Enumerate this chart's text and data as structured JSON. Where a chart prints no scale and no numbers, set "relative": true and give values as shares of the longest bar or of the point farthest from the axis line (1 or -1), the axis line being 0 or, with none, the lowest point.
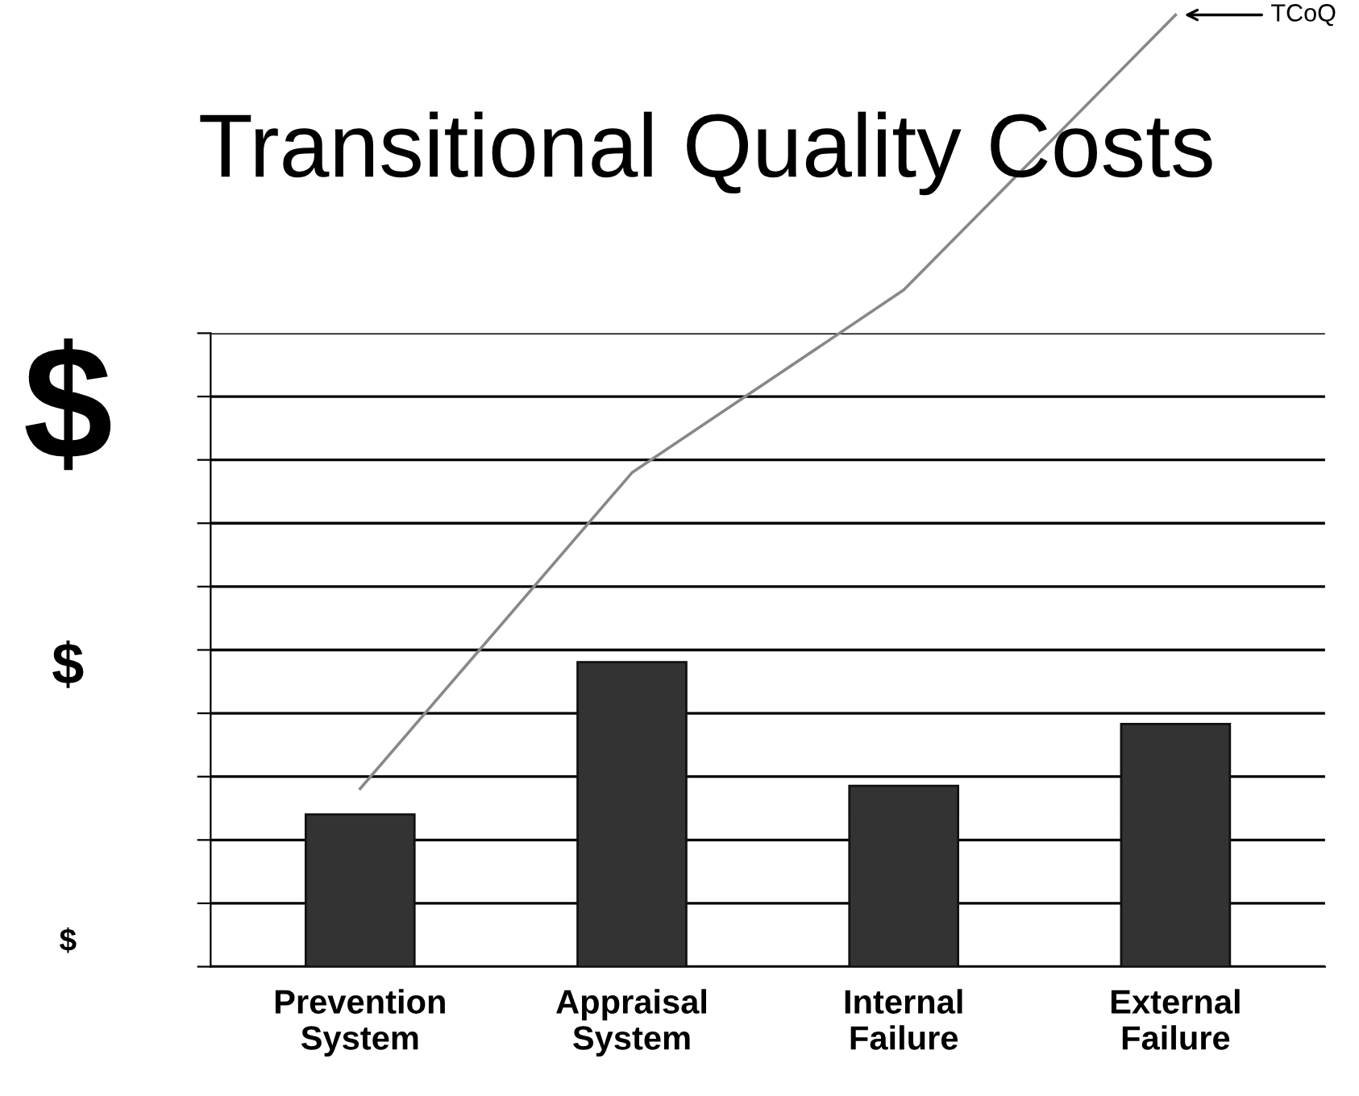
{
  "chart_data": {
    "type": "bar",
    "title": "Transitional Quality Costs",
    "relative": true,
    "grid": "y",
    "legend": "top right",
    "categories": [
      "Prevention\nSystem",
      "Appraisal\nSystem",
      "Internal\nFailure",
      "External\nFailure"
    ],
    "series": [
      {
        "color": "#333333",
        "values": [
          0.16,
          0.32,
          0.19,
          0.255
        ]
      },
      {
        "name": "TCoQ",
        "type": "line",
        "color": "#888888",
        "marker": "none",
        "line_style": "solid",
        "values": [
          0.187,
          0.519,
          0.711,
          1.0
        ]
      }
    ],
    "annotations": [
      "$",
      "$",
      "$"
    ]
  }
}
